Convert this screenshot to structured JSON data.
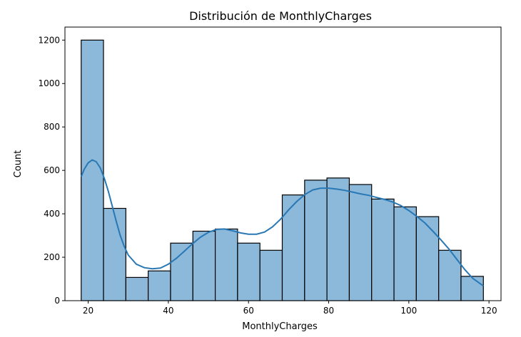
{
  "chart_data": {
    "type": "histogram",
    "title": "Distribución de MonthlyCharges",
    "xlabel": "MonthlyCharges",
    "ylabel": "Count",
    "xlim": [
      14.2,
      123
    ],
    "ylim": [
      0,
      1260
    ],
    "x_ticks": [
      "20",
      "40",
      "60",
      "80",
      "100",
      "120"
    ],
    "y_ticks": [
      "0",
      "200",
      "400",
      "600",
      "800",
      "1000",
      "1200"
    ],
    "bin_edges": [
      18.25,
      23.82,
      29.4,
      34.97,
      40.55,
      46.12,
      51.7,
      57.27,
      62.85,
      68.42,
      74.0,
      79.57,
      85.15,
      90.72,
      96.3,
      101.87,
      107.45,
      113.02,
      118.6
    ],
    "counts": [
      1200,
      425,
      107,
      137,
      265,
      320,
      330,
      265,
      232,
      487,
      555,
      565,
      535,
      468,
      432,
      387,
      232,
      112
    ],
    "kde": {
      "x": [
        18.25,
        19,
        20,
        21,
        22,
        23,
        24,
        25,
        26,
        27,
        28,
        29,
        30,
        32,
        34,
        36,
        38,
        40,
        42,
        44,
        46,
        48,
        50,
        52,
        54,
        56,
        58,
        60,
        62,
        64,
        66,
        68,
        70,
        72,
        74,
        76,
        78,
        80,
        82,
        84,
        86,
        88,
        90,
        92,
        94,
        96,
        98,
        100,
        102,
        104,
        106,
        108,
        110,
        112,
        114,
        116,
        118.6
      ],
      "y": [
        570,
        605,
        635,
        648,
        640,
        612,
        565,
        505,
        435,
        365,
        300,
        250,
        210,
        168,
        152,
        147,
        150,
        168,
        195,
        228,
        262,
        292,
        315,
        328,
        330,
        322,
        312,
        306,
        306,
        316,
        340,
        375,
        418,
        456,
        488,
        510,
        518,
        518,
        514,
        508,
        500,
        492,
        485,
        475,
        466,
        454,
        438,
        415,
        388,
        358,
        320,
        280,
        238,
        190,
        142,
        102,
        68
      ]
    },
    "colors": {
      "bar_fill": "#8cb8d9",
      "bar_edge": "#000000",
      "kde_line": "#2878b5"
    }
  }
}
